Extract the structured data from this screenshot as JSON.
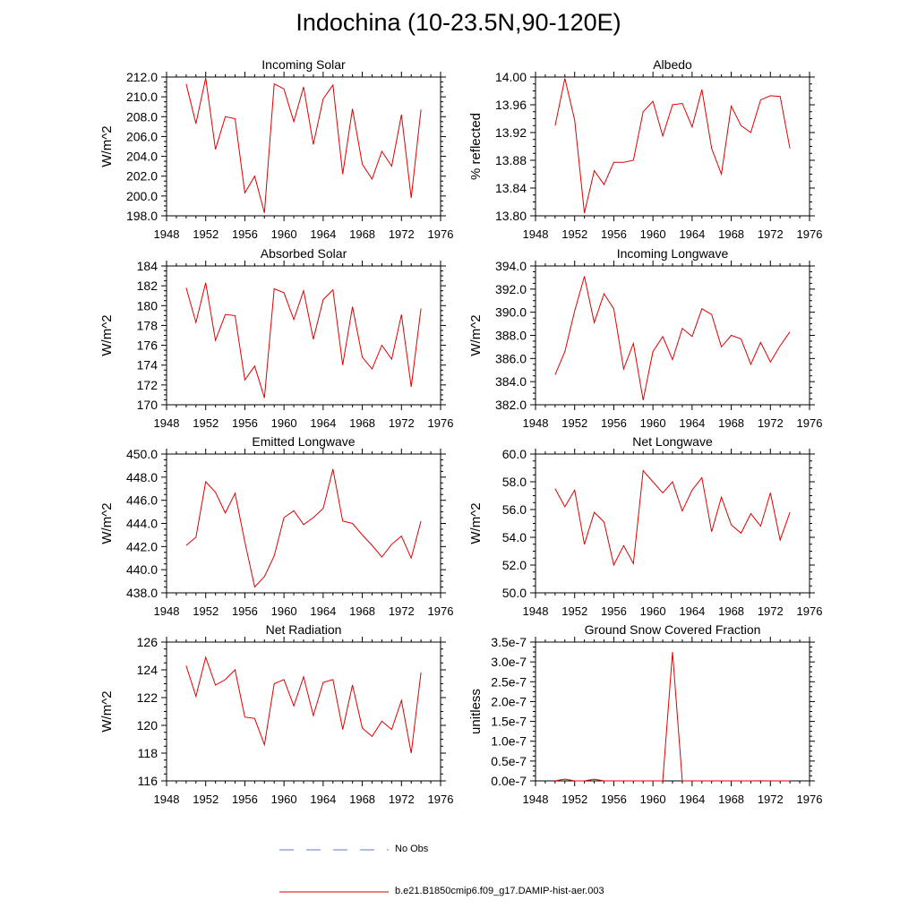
{
  "title": "Indochina (10-23.5N,90-120E)",
  "colors": {
    "model": "#e00000",
    "obs": "#6677cc",
    "axis": "#000000"
  },
  "legend": [
    {
      "label": "No Obs",
      "style": "dashed",
      "color": "#6677cc"
    },
    {
      "label": "b.e21.B1850cmip6.f09_g17.DAMIP-hist-aer.003",
      "style": "solid",
      "color": "#e00000"
    }
  ],
  "chart_data": [
    {
      "type": "line",
      "title": "Incoming Solar",
      "ylabel": "W/m^2",
      "xlim": [
        1948,
        1976
      ],
      "xticks": [
        "1948",
        "1952",
        "1956",
        "1960",
        "1964",
        "1968",
        "1972",
        "1976"
      ],
      "ylim": [
        198,
        212
      ],
      "yticks": [
        "198.0",
        "200.0",
        "202.0",
        "204.0",
        "206.0",
        "208.0",
        "210.0",
        "212.0"
      ],
      "x": [
        1950,
        1951,
        1952,
        1953,
        1954,
        1955,
        1956,
        1957,
        1958,
        1959,
        1960,
        1961,
        1962,
        1963,
        1964,
        1965,
        1966,
        1967,
        1968,
        1969,
        1970,
        1971,
        1972,
        1973,
        1974
      ],
      "series": [
        {
          "values": [
            211.3,
            207.3,
            211.9,
            204.7,
            208.0,
            207.8,
            200.3,
            202.0,
            198.3,
            211.3,
            210.8,
            207.5,
            211.0,
            205.2,
            209.8,
            211.2,
            202.2,
            208.8,
            203.2,
            201.7,
            204.5,
            203.0,
            208.2,
            199.8,
            208.7
          ]
        }
      ]
    },
    {
      "type": "line",
      "title": "Albedo",
      "ylabel": "% reflected",
      "xlim": [
        1948,
        1976
      ],
      "xticks": [
        "1948",
        "1952",
        "1956",
        "1960",
        "1964",
        "1968",
        "1972",
        "1976"
      ],
      "ylim": [
        13.8,
        14.0
      ],
      "yticks": [
        "13.80",
        "13.84",
        "13.88",
        "13.92",
        "13.96",
        "14.00"
      ],
      "x": [
        1950,
        1951,
        1952,
        1953,
        1954,
        1955,
        1956,
        1957,
        1958,
        1959,
        1960,
        1961,
        1962,
        1963,
        1964,
        1965,
        1966,
        1967,
        1968,
        1969,
        1970,
        1971,
        1972,
        1973,
        1974
      ],
      "series": [
        {
          "values": [
            13.93,
            13.998,
            13.938,
            13.804,
            13.865,
            13.845,
            13.877,
            13.877,
            13.88,
            13.95,
            13.965,
            13.915,
            13.96,
            13.962,
            13.928,
            13.982,
            13.897,
            13.86,
            13.958,
            13.93,
            13.92,
            13.967,
            13.973,
            13.972,
            13.897
          ]
        }
      ]
    },
    {
      "type": "line",
      "title": "Absorbed Solar",
      "ylabel": "W/m^2",
      "xlim": [
        1948,
        1976
      ],
      "xticks": [
        "1948",
        "1952",
        "1956",
        "1960",
        "1964",
        "1968",
        "1972",
        "1976"
      ],
      "ylim": [
        170,
        184
      ],
      "yticks": [
        "170",
        "172",
        "174",
        "176",
        "178",
        "180",
        "182",
        "184"
      ],
      "x": [
        1950,
        1951,
        1952,
        1953,
        1954,
        1955,
        1956,
        1957,
        1958,
        1959,
        1960,
        1961,
        1962,
        1963,
        1964,
        1965,
        1966,
        1967,
        1968,
        1969,
        1970,
        1971,
        1972,
        1973,
        1974
      ],
      "series": [
        {
          "values": [
            181.8,
            178.3,
            182.3,
            176.5,
            179.1,
            179.0,
            172.5,
            173.9,
            170.7,
            181.7,
            181.3,
            178.6,
            181.5,
            176.6,
            180.6,
            181.6,
            174.0,
            179.9,
            174.8,
            173.6,
            176.0,
            174.6,
            179.1,
            171.8,
            179.7
          ]
        }
      ]
    },
    {
      "type": "line",
      "title": "Incoming Longwave",
      "ylabel": "W/m^2",
      "xlim": [
        1948,
        1976
      ],
      "xticks": [
        "1948",
        "1952",
        "1956",
        "1960",
        "1964",
        "1968",
        "1972",
        "1976"
      ],
      "ylim": [
        382,
        394
      ],
      "yticks": [
        "382.0",
        "384.0",
        "386.0",
        "388.0",
        "390.0",
        "392.0",
        "394.0"
      ],
      "x": [
        1950,
        1951,
        1952,
        1953,
        1954,
        1955,
        1956,
        1957,
        1958,
        1959,
        1960,
        1961,
        1962,
        1963,
        1964,
        1965,
        1966,
        1967,
        1968,
        1969,
        1970,
        1971,
        1972,
        1973,
        1974
      ],
      "series": [
        {
          "values": [
            384.6,
            386.6,
            390.1,
            393.1,
            389.1,
            391.6,
            390.3,
            385.1,
            387.3,
            382.4,
            386.6,
            387.9,
            385.9,
            388.6,
            387.9,
            390.3,
            389.8,
            387.0,
            388.0,
            387.7,
            385.5,
            387.4,
            385.7,
            387.1,
            388.3
          ]
        }
      ]
    },
    {
      "type": "line",
      "title": "Emitted Longwave",
      "ylabel": "W/m^2",
      "xlim": [
        1948,
        1976
      ],
      "xticks": [
        "1948",
        "1952",
        "1956",
        "1960",
        "1964",
        "1968",
        "1972",
        "1976"
      ],
      "ylim": [
        438,
        450
      ],
      "yticks": [
        "438.0",
        "440.0",
        "442.0",
        "444.0",
        "446.0",
        "448.0",
        "450.0"
      ],
      "x": [
        1950,
        1951,
        1952,
        1953,
        1954,
        1955,
        1956,
        1957,
        1958,
        1959,
        1960,
        1961,
        1962,
        1963,
        1964,
        1965,
        1966,
        1967,
        1968,
        1969,
        1970,
        1971,
        1972,
        1973,
        1974
      ],
      "series": [
        {
          "values": [
            442.1,
            442.8,
            447.6,
            446.7,
            444.9,
            446.6,
            442.4,
            438.5,
            439.4,
            441.2,
            444.5,
            445.1,
            443.9,
            444.5,
            445.3,
            448.7,
            444.2,
            444.0,
            443.0,
            442.1,
            441.1,
            442.2,
            442.9,
            441.0,
            444.2
          ]
        }
      ]
    },
    {
      "type": "line",
      "title": "Net Longwave",
      "ylabel": "W/m^2",
      "xlim": [
        1948,
        1976
      ],
      "xticks": [
        "1948",
        "1952",
        "1956",
        "1960",
        "1964",
        "1968",
        "1972",
        "1976"
      ],
      "ylim": [
        50,
        60
      ],
      "yticks": [
        "50.0",
        "52.0",
        "54.0",
        "56.0",
        "58.0",
        "60.0"
      ],
      "x": [
        1950,
        1951,
        1952,
        1953,
        1954,
        1955,
        1956,
        1957,
        1958,
        1959,
        1960,
        1961,
        1962,
        1963,
        1964,
        1965,
        1966,
        1967,
        1968,
        1969,
        1970,
        1971,
        1972,
        1973,
        1974
      ],
      "series": [
        {
          "values": [
            57.5,
            56.2,
            57.4,
            53.5,
            55.8,
            55.1,
            52.0,
            53.4,
            52.1,
            58.8,
            58.0,
            57.2,
            58.0,
            55.9,
            57.4,
            58.3,
            54.4,
            56.9,
            54.9,
            54.3,
            55.7,
            54.8,
            57.2,
            53.8,
            55.8
          ]
        }
      ]
    },
    {
      "type": "line",
      "title": "Net Radiation",
      "ylabel": "W/m^2",
      "xlim": [
        1948,
        1976
      ],
      "xticks": [
        "1948",
        "1952",
        "1956",
        "1960",
        "1964",
        "1968",
        "1972",
        "1976"
      ],
      "ylim": [
        116,
        126
      ],
      "yticks": [
        "116",
        "118",
        "120",
        "122",
        "124",
        "126"
      ],
      "x": [
        1950,
        1951,
        1952,
        1953,
        1954,
        1955,
        1956,
        1957,
        1958,
        1959,
        1960,
        1961,
        1962,
        1963,
        1964,
        1965,
        1966,
        1967,
        1968,
        1969,
        1970,
        1971,
        1972,
        1973,
        1974
      ],
      "series": [
        {
          "values": [
            124.3,
            122.1,
            124.9,
            122.9,
            123.3,
            124.0,
            120.6,
            120.5,
            118.6,
            123.0,
            123.3,
            121.4,
            123.5,
            120.7,
            123.1,
            123.3,
            119.7,
            122.9,
            119.8,
            119.2,
            120.3,
            119.7,
            121.8,
            118.0,
            123.8
          ]
        }
      ]
    },
    {
      "type": "line",
      "title": "Ground Snow Covered Fraction",
      "ylabel": "unitless",
      "xlim": [
        1948,
        1976
      ],
      "xticks": [
        "1948",
        "1952",
        "1956",
        "1960",
        "1964",
        "1968",
        "1972",
        "1976"
      ],
      "ylim": [
        0,
        3.5e-07
      ],
      "yticks": [
        "0.0e-7",
        "0.5e-7",
        "1.0e-7",
        "1.5e-7",
        "2.0e-7",
        "2.5e-7",
        "3.0e-7",
        "3.5e-7"
      ],
      "x": [
        1950,
        1951,
        1952,
        1953,
        1954,
        1955,
        1956,
        1957,
        1958,
        1959,
        1960,
        1961,
        1962,
        1963,
        1964,
        1965,
        1966,
        1967,
        1968,
        1969,
        1970,
        1971,
        1972,
        1973,
        1974
      ],
      "series": [
        {
          "values": [
            0,
            4.5e-09,
            0,
            0,
            4.2e-09,
            0,
            0,
            0,
            0,
            0,
            0,
            0,
            3.25e-07,
            0,
            0,
            0,
            0,
            0,
            0,
            0,
            0,
            2e-10,
            0,
            0,
            0
          ]
        }
      ]
    }
  ]
}
